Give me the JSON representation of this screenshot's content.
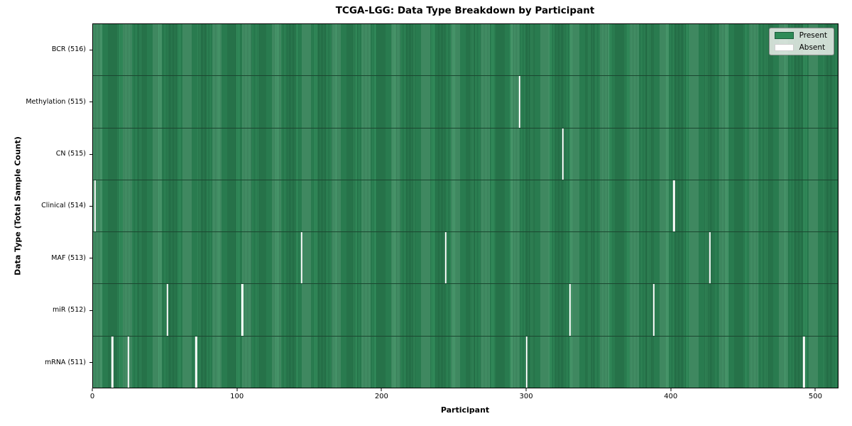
{
  "chart_data": {
    "type": "heatmap",
    "title": "TCGA-LGG: Data Type Breakdown by Participant",
    "xlabel": "Participant",
    "ylabel": "Data Type (Total Sample Count)",
    "x_range": [
      0,
      516
    ],
    "x_ticks": [
      0,
      100,
      200,
      300,
      400,
      500
    ],
    "total_participants": 516,
    "grid": false,
    "rows": [
      {
        "data_type": "BCR",
        "label": "BCR (516)",
        "present_count": 516,
        "absent_participants": []
      },
      {
        "data_type": "Methylation",
        "label": "Methylation (515)",
        "present_count": 515,
        "absent_participants": [
          295
        ]
      },
      {
        "data_type": "CN",
        "label": "CN (515)",
        "present_count": 515,
        "absent_participants": [
          325
        ]
      },
      {
        "data_type": "Clinical",
        "label": "Clinical (514)",
        "present_count": 514,
        "absent_participants": [
          1,
          402
        ]
      },
      {
        "data_type": "MAF",
        "label": "MAF (513)",
        "present_count": 513,
        "absent_participants": [
          144,
          244,
          427
        ]
      },
      {
        "data_type": "miR",
        "label": "miR (512)",
        "present_count": 512,
        "absent_participants": [
          51,
          103,
          330,
          388
        ]
      },
      {
        "data_type": "mRNA",
        "label": "mRNA (511)",
        "present_count": 511,
        "absent_participants": [
          13,
          24,
          71,
          300,
          492
        ]
      }
    ],
    "legend": {
      "position": "upper right",
      "items": [
        {
          "label": "Present",
          "color": "#2e8b57"
        },
        {
          "label": "Absent",
          "color": "#ffffff"
        }
      ]
    },
    "colors": {
      "present": "#2e8b57",
      "present_edge": "#1d6640",
      "absent": "#ffffff",
      "background": "#ffffff"
    }
  }
}
